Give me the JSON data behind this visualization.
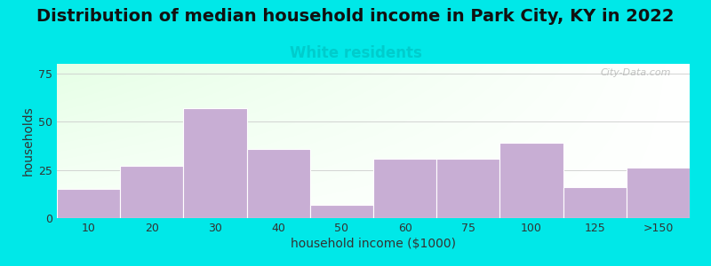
{
  "categories": [
    "10",
    "20",
    "30",
    "40",
    "50",
    "60",
    "75",
    "100",
    "125",
    ">150"
  ],
  "values": [
    15,
    27,
    57,
    36,
    7,
    31,
    31,
    39,
    16,
    26
  ],
  "bar_color": "#c8aed4",
  "bar_edgecolor": "#ffffff",
  "title": "Distribution of median household income in Park City, KY in 2022",
  "subtitle": "White residents",
  "subtitle_color": "#00cccc",
  "xlabel": "household income ($1000)",
  "ylabel": "households",
  "ylim": [
    0,
    80
  ],
  "yticks": [
    0,
    25,
    50,
    75
  ],
  "outer_bg": "#00e8e8",
  "plot_bg_color_topleft": "#d8edd8",
  "plot_bg_color_right": "#f8fff8",
  "plot_bg_color_bottom": "#ffffff",
  "title_fontsize": 14,
  "subtitle_fontsize": 12,
  "xlabel_fontsize": 10,
  "ylabel_fontsize": 10,
  "watermark": "City-Data.com"
}
